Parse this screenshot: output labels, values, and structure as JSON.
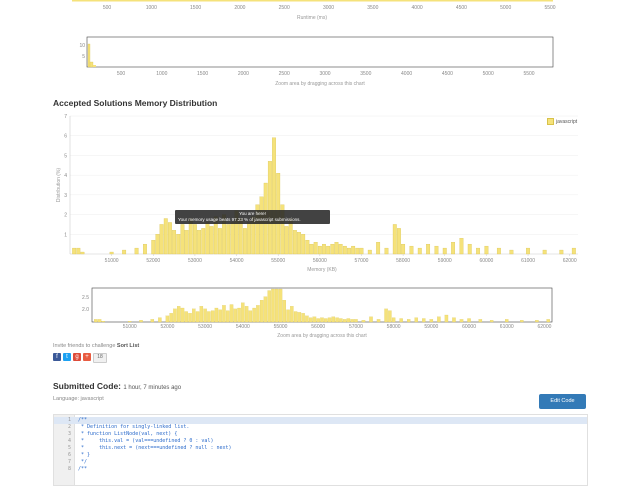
{
  "colors": {
    "bar_fill": "#f5e27a",
    "bar_stroke": "#d6c04f",
    "accent_button": "#337ab7"
  },
  "runtime_chart": {
    "x_ticks": [
      "500",
      "1000",
      "1500",
      "2000",
      "2500",
      "3000",
      "3500",
      "4000",
      "4500",
      "5000",
      "5500"
    ],
    "xlabel": "Runtime (ms)"
  },
  "runtime_zoom": {
    "x_ticks": [
      "500",
      "1000",
      "1500",
      "2000",
      "2500",
      "3000",
      "3500",
      "4000",
      "4500",
      "5000",
      "5500"
    ],
    "y_ticks": [
      "10",
      "5"
    ],
    "note": "Zoom area by dragging across this chart"
  },
  "memory_section": {
    "heading": "Accepted Solutions Memory Distribution"
  },
  "chart_data": {
    "type": "bar",
    "title": "Accepted Solutions Memory Distribution",
    "xlabel": "Memory (KB)",
    "ylabel": "Distribution (%)",
    "x_ticks": [
      "51000",
      "52000",
      "53000",
      "54000",
      "55000",
      "56000",
      "57000",
      "58000",
      "59000",
      "60000",
      "61000",
      "62000"
    ],
    "y_ticks": [
      "7",
      "6",
      "5",
      "4",
      "3",
      "2",
      "1"
    ],
    "xlim": [
      50000,
      62200
    ],
    "ylim": [
      0,
      7
    ],
    "legend": [
      "javascript"
    ],
    "legend_position": "top-right",
    "grid": true,
    "series": [
      {
        "name": "javascript",
        "x": [
          50100,
          50200,
          50300,
          51000,
          51300,
          51600,
          51800,
          52000,
          52100,
          52200,
          52300,
          52400,
          52500,
          52600,
          52700,
          52800,
          52900,
          53000,
          53100,
          53200,
          53300,
          53400,
          53500,
          53600,
          53700,
          53800,
          53900,
          54000,
          54100,
          54200,
          54300,
          54400,
          54500,
          54600,
          54700,
          54800,
          54900,
          55000,
          55100,
          55200,
          55300,
          55400,
          55500,
          55600,
          55700,
          55800,
          55900,
          56000,
          56100,
          56200,
          56300,
          56400,
          56500,
          56600,
          56700,
          56800,
          56900,
          57000,
          57200,
          57400,
          57600,
          57800,
          57900,
          58000,
          58200,
          58400,
          58600,
          58800,
          59000,
          59200,
          59400,
          59600,
          59800,
          60000,
          60300,
          60600,
          61000,
          61400,
          61800,
          62100
        ],
        "values": [
          0.3,
          0.3,
          0.1,
          0.1,
          0.2,
          0.3,
          0.5,
          0.7,
          1.0,
          1.5,
          1.8,
          1.6,
          1.2,
          1.0,
          1.5,
          1.2,
          1.8,
          1.5,
          1.2,
          1.3,
          1.6,
          1.4,
          1.9,
          1.3,
          2.0,
          1.5,
          1.6,
          2.2,
          1.8,
          1.3,
          1.6,
          1.9,
          2.5,
          2.9,
          3.6,
          4.7,
          5.9,
          4.1,
          2.5,
          1.4,
          1.8,
          1.2,
          1.1,
          1.0,
          0.7,
          0.5,
          0.6,
          0.4,
          0.5,
          0.4,
          0.5,
          0.6,
          0.5,
          0.4,
          0.3,
          0.4,
          0.3,
          0.3,
          0.2,
          0.6,
          0.3,
          1.5,
          1.3,
          0.5,
          0.4,
          0.3,
          0.5,
          0.4,
          0.3,
          0.6,
          0.8,
          0.5,
          0.3,
          0.4,
          0.3,
          0.2,
          0.3,
          0.2,
          0.2,
          0.3
        ]
      }
    ],
    "tooltip": {
      "title": "You are here!",
      "body": "Your memory usage beats 97.23 % of javascript submissions."
    }
  },
  "memory_zoom": {
    "x_ticks": [
      "51000",
      "52000",
      "53000",
      "54000",
      "55000",
      "56000",
      "57000",
      "58000",
      "59000",
      "60000",
      "61000",
      "62000"
    ],
    "y_ticks": [
      "2.5",
      "2.0"
    ],
    "note": "Zoom area by dragging across this chart"
  },
  "invite": {
    "prefix": "Invite friends to challenge",
    "problem": "Sort List"
  },
  "share": {
    "count": "18"
  },
  "submission": {
    "label": "Submitted Code:",
    "ago": "1 hour, 7 minutes ago",
    "language_label": "Language: javascript",
    "edit_button": "Edit Code"
  },
  "code_lines": [
    {
      "n": "1",
      "text": "/**"
    },
    {
      "n": "2",
      "text": " * Definition for singly-linked list."
    },
    {
      "n": "3",
      "text": " * function ListNode(val, next) {"
    },
    {
      "n": "4",
      "text": " *     this.val = (val===undefined ? 0 : val)"
    },
    {
      "n": "5",
      "text": " *     this.next = (next===undefined ? null : next)"
    },
    {
      "n": "6",
      "text": " * }"
    },
    {
      "n": "7",
      "text": " */"
    },
    {
      "n": "8",
      "text": "/**"
    }
  ]
}
